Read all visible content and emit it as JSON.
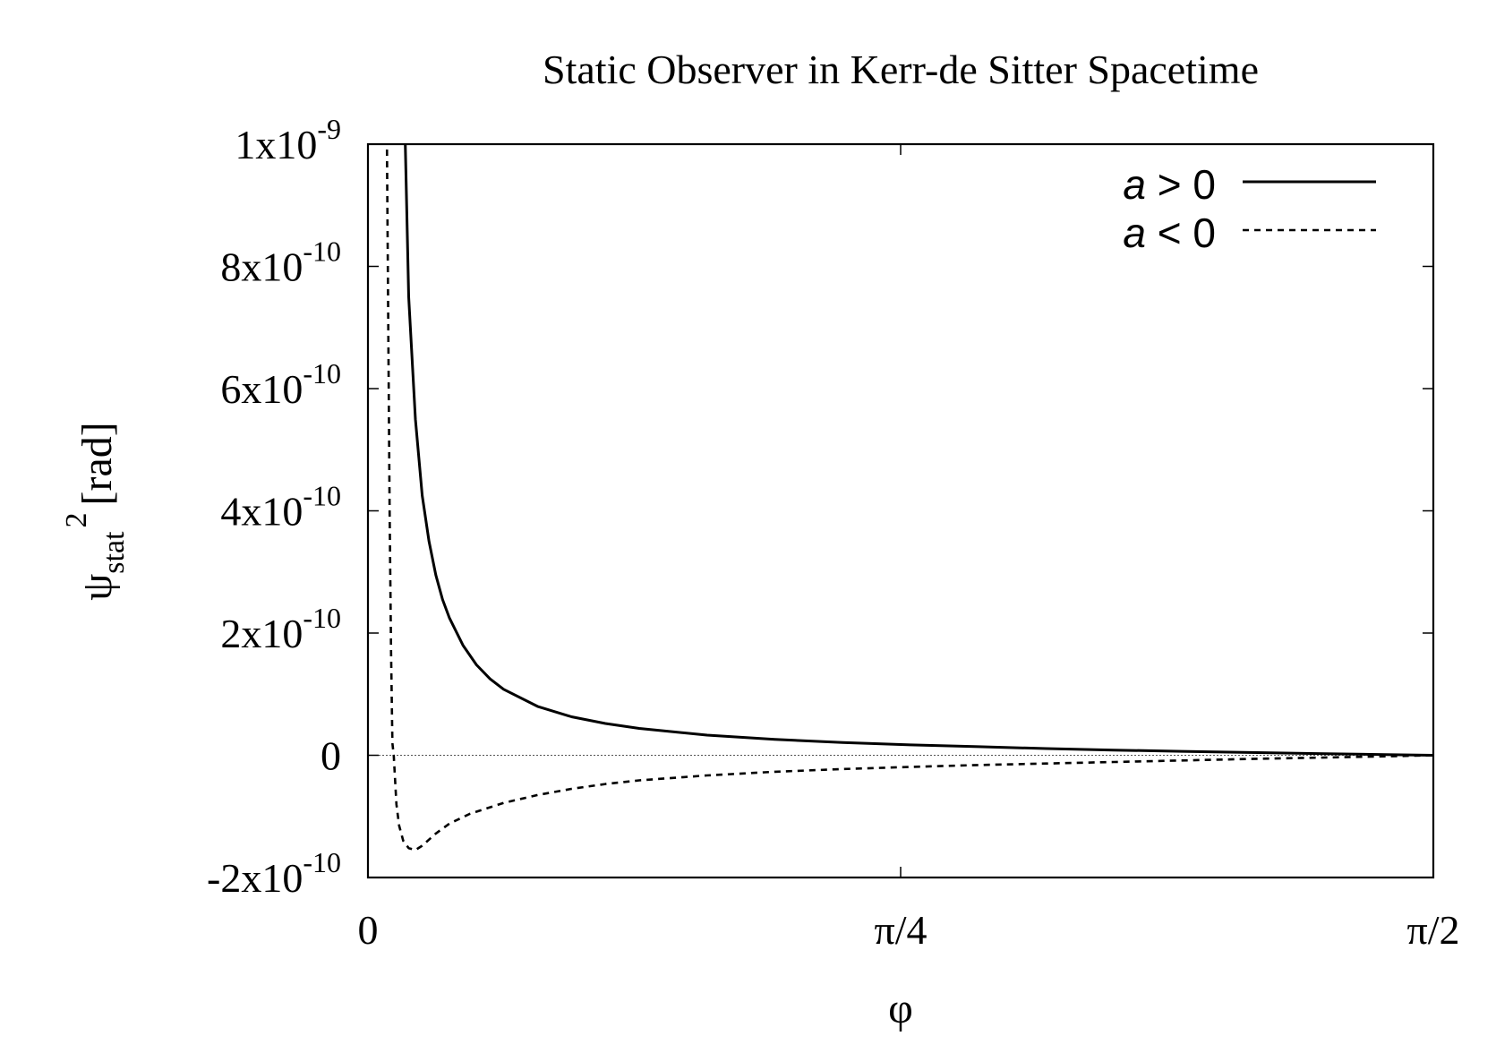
{
  "chart_data": {
    "type": "line",
    "title": "Static Observer in Kerr-de Sitter Spacetime",
    "xlabel": "φ",
    "ylabel": {
      "base": "ψ",
      "sub": "stat",
      "sup": "2",
      "unit": "[rad]"
    },
    "xlim": [
      0,
      1.5708
    ],
    "ylim": [
      -2e-10,
      1e-09
    ],
    "x_ticks": [
      {
        "value": 0,
        "label": "0"
      },
      {
        "value": 0.7854,
        "label": "π/4"
      },
      {
        "value": 1.5708,
        "label": "π/2"
      }
    ],
    "y_ticks": [
      {
        "value": 1e-09,
        "mant": "1x10",
        "exp": "-9"
      },
      {
        "value": 8e-10,
        "mant": "8x10",
        "exp": "-10"
      },
      {
        "value": 6e-10,
        "mant": "6x10",
        "exp": "-10"
      },
      {
        "value": 4e-10,
        "mant": "4x10",
        "exp": "-10"
      },
      {
        "value": 2e-10,
        "mant": "2x10",
        "exp": "-10"
      },
      {
        "value": 0,
        "mant": "0",
        "exp": ""
      },
      {
        "value": -2e-10,
        "mant": "-2x10",
        "exp": "-10"
      }
    ],
    "zero_line": true,
    "grid": false,
    "legend_position": "top-right",
    "series": [
      {
        "name": "a > 0",
        "legend": {
          "var": "a",
          "rel": " > 0"
        },
        "style": "solid",
        "x": [
          0.055,
          0.06,
          0.07,
          0.08,
          0.09,
          0.1,
          0.11,
          0.12,
          0.14,
          0.16,
          0.18,
          0.2,
          0.25,
          0.3,
          0.35,
          0.4,
          0.5,
          0.6,
          0.7,
          0.8,
          0.9,
          1.0,
          1.1,
          1.2,
          1.3,
          1.4,
          1.5,
          1.5708
        ],
        "y": [
          1e-09,
          7.5e-10,
          5.5e-10,
          4.25e-10,
          3.5e-10,
          2.95e-10,
          2.55e-10,
          2.25e-10,
          1.8e-10,
          1.48e-10,
          1.25e-10,
          1.08e-10,
          8e-11,
          6.3e-11,
          5.2e-11,
          4.4e-11,
          3.3e-11,
          2.6e-11,
          2.1e-11,
          1.7e-11,
          1.4e-11,
          1.1e-11,
          8.5e-12,
          6.5e-12,
          4.5e-12,
          2.8e-12,
          1.2e-12,
          0.0
        ]
      },
      {
        "name": "a < 0",
        "legend": {
          "var": "a",
          "rel": " < 0"
        },
        "style": "dashed",
        "x": [
          0.028,
          0.03,
          0.032,
          0.034,
          0.036,
          0.038,
          0.042,
          0.046,
          0.052,
          0.06,
          0.07,
          0.08,
          0.09,
          0.1,
          0.12,
          0.15,
          0.2,
          0.25,
          0.3,
          0.35,
          0.4,
          0.5,
          0.6,
          0.7,
          0.8,
          0.9,
          1.0,
          1.1,
          1.2,
          1.3,
          1.4,
          1.5,
          1.5708
        ],
        "y": [
          1e-09,
          7e-10,
          4e-10,
          1.7e-10,
          2e-11,
          0.0,
          -8e-11,
          -1.15e-10,
          -1.4e-10,
          -1.52e-10,
          -1.55e-10,
          -1.48e-10,
          -1.38e-10,
          -1.28e-10,
          -1.12e-10,
          -9.6e-11,
          -7.8e-11,
          -6.5e-11,
          -5.5e-11,
          -4.7e-11,
          -4.1e-11,
          -3.3e-11,
          -2.7e-11,
          -2.25e-11,
          -1.9e-11,
          -1.6e-11,
          -1.35e-11,
          -1.1e-11,
          -8.5e-12,
          -6e-12,
          -4e-12,
          -1.8e-12,
          0.0
        ]
      }
    ]
  }
}
